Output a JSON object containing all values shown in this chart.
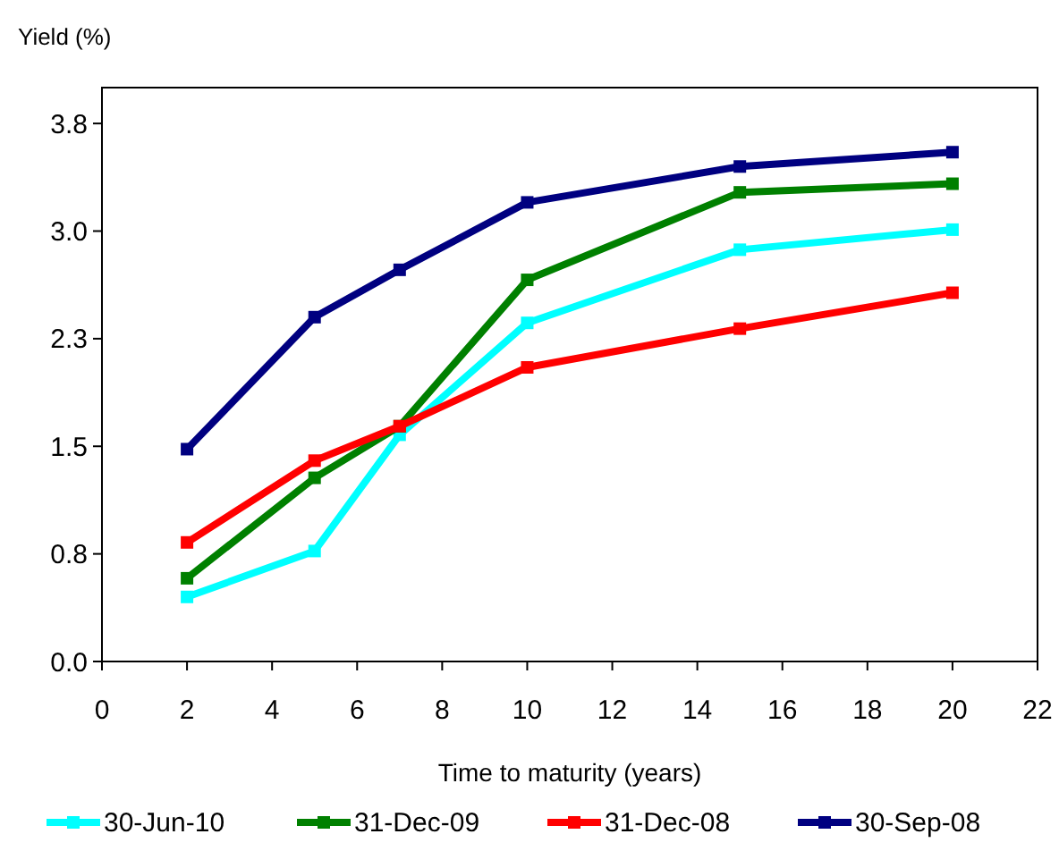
{
  "chart_data": {
    "type": "line",
    "xlabel": "Time to maturity (years)",
    "ylabel": "Yield (%)",
    "x": [
      2,
      5,
      7,
      10,
      15,
      20
    ],
    "xlim": [
      0,
      22
    ],
    "xticks": [
      0,
      2,
      4,
      6,
      8,
      10,
      12,
      14,
      16,
      18,
      20,
      22
    ],
    "ylim": [
      0,
      4
    ],
    "yticks": [
      {
        "value": 0,
        "label": "0.0"
      },
      {
        "value": 0.75,
        "label": "0.8"
      },
      {
        "value": 1.5,
        "label": "1.5"
      },
      {
        "value": 2.25,
        "label": "2.3"
      },
      {
        "value": 3,
        "label": "3.0"
      },
      {
        "value": 3.75,
        "label": "3.8"
      }
    ],
    "series": [
      {
        "name": "30-Jun-10",
        "color": "#00ffff",
        "values": [
          0.45,
          0.77,
          1.58,
          2.36,
          2.87,
          3.01
        ]
      },
      {
        "name": "31-Dec-09",
        "color": "#008000",
        "values": [
          0.58,
          1.28,
          1.64,
          2.66,
          3.27,
          3.33
        ]
      },
      {
        "name": "31-Dec-08",
        "color": "#ff0000",
        "values": [
          0.83,
          1.4,
          1.64,
          2.05,
          2.32,
          2.57
        ]
      },
      {
        "name": "30-Sep-08",
        "color": "#000080",
        "values": [
          1.48,
          2.4,
          2.73,
          3.2,
          3.45,
          3.55
        ]
      }
    ],
    "marker": "square",
    "line_style": "solid",
    "grid": false,
    "legend": "bottom"
  }
}
